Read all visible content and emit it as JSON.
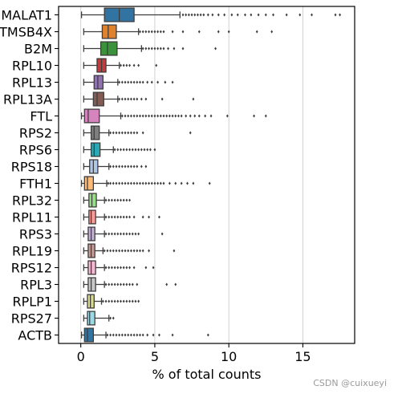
{
  "chart_data": {
    "type": "box",
    "orientation": "horizontal",
    "xlabel": "% of total counts",
    "ylabel": "",
    "xlim": [
      -1.5,
      18.5
    ],
    "xticks": [
      0,
      5,
      10,
      15
    ],
    "grid": "vertical",
    "series": [
      {
        "gene": "MALAT1",
        "color": "#3274a1",
        "min": 0.05,
        "q1": 1.6,
        "median": 2.6,
        "q3": 3.6,
        "max": 6.7,
        "outliers": [
          6.9,
          7.1,
          7.3,
          7.5,
          7.7,
          7.9,
          8.1,
          8.3,
          8.6,
          8.9,
          9.3,
          9.7,
          10.2,
          10.6,
          11.1,
          11.5,
          12.0,
          12.5,
          13.0,
          13.9,
          14.8,
          15.6,
          17.2,
          17.5
        ]
      },
      {
        "gene": "TMSB4X",
        "color": "#e1812c",
        "min": 0.2,
        "q1": 1.45,
        "median": 1.85,
        "q3": 2.4,
        "max": 3.9,
        "outliers": [
          4.0,
          4.2,
          4.4,
          4.6,
          4.8,
          5.0,
          5.2,
          5.4,
          5.6,
          6.2,
          6.9,
          8.0,
          9.3,
          10.0,
          11.9,
          12.9
        ]
      },
      {
        "gene": "B2M",
        "color": "#3a923a",
        "min": 0.2,
        "q1": 1.35,
        "median": 1.8,
        "q3": 2.45,
        "max": 4.1,
        "outliers": [
          4.2,
          4.4,
          4.6,
          4.8,
          5.0,
          5.2,
          5.4,
          5.6,
          5.9,
          6.3,
          6.9,
          9.1
        ]
      },
      {
        "gene": "RPL10",
        "color": "#c03d3e",
        "min": 0.2,
        "q1": 1.1,
        "median": 1.4,
        "q3": 1.7,
        "max": 2.6,
        "outliers": [
          2.7,
          2.9,
          3.1,
          3.3,
          3.6,
          3.9,
          5.1
        ]
      },
      {
        "gene": "RPL13",
        "color": "#9372b2",
        "min": 0.2,
        "q1": 0.9,
        "median": 1.15,
        "q3": 1.5,
        "max": 2.5,
        "outliers": [
          2.6,
          2.8,
          3.0,
          3.2,
          3.4,
          3.6,
          3.8,
          4.0,
          4.2,
          4.5,
          4.8,
          5.2,
          5.7,
          6.2
        ]
      },
      {
        "gene": "RPL13A",
        "color": "#845b53",
        "min": 0.2,
        "q1": 0.85,
        "median": 1.1,
        "q3": 1.55,
        "max": 2.5,
        "outliers": [
          2.6,
          2.8,
          3.0,
          3.2,
          3.4,
          3.6,
          3.8,
          4.1,
          4.4,
          5.5,
          7.6
        ]
      },
      {
        "gene": "FTL",
        "color": "#d684bd",
        "min": 0.05,
        "q1": 0.25,
        "median": 0.5,
        "q3": 1.25,
        "max": 2.7,
        "outliers": [
          2.8,
          3.0,
          3.2,
          3.4,
          3.6,
          3.8,
          4.0,
          4.2,
          4.4,
          4.6,
          4.8,
          5.0,
          5.2,
          5.4,
          5.6,
          5.8,
          6.0,
          6.2,
          6.4,
          6.6,
          6.8,
          7.1,
          7.4,
          7.7,
          8.0,
          8.4,
          8.8,
          9.9,
          11.7,
          12.5
        ]
      },
      {
        "gene": "RPS2",
        "color": "#7f7f7f",
        "min": 0.2,
        "q1": 0.7,
        "median": 0.9,
        "q3": 1.25,
        "max": 1.9,
        "outliers": [
          2.0,
          2.2,
          2.4,
          2.6,
          2.8,
          3.0,
          3.2,
          3.4,
          3.6,
          3.8,
          4.2,
          7.4
        ]
      },
      {
        "gene": "RPS6",
        "color": "#29a9b6",
        "min": 0.2,
        "q1": 0.7,
        "median": 0.9,
        "q3": 1.3,
        "max": 2.2,
        "outliers": [
          2.3,
          2.5,
          2.7,
          2.9,
          3.1,
          3.3,
          3.5,
          3.7,
          3.9,
          4.1,
          4.3,
          4.5,
          4.7,
          5.0
        ]
      },
      {
        "gene": "RPS18",
        "color": "#aec7e8",
        "min": 0.2,
        "q1": 0.6,
        "median": 0.85,
        "q3": 1.15,
        "max": 1.9,
        "outliers": [
          2.0,
          2.2,
          2.4,
          2.6,
          2.8,
          3.0,
          3.2,
          3.4,
          3.6,
          3.8,
          4.1,
          4.4
        ]
      },
      {
        "gene": "FTH1",
        "color": "#ffbb78",
        "min": 0.05,
        "q1": 0.25,
        "median": 0.45,
        "q3": 0.85,
        "max": 1.75,
        "outliers": [
          1.85,
          2.0,
          2.2,
          2.4,
          2.6,
          2.8,
          3.0,
          3.2,
          3.4,
          3.6,
          3.8,
          4.0,
          4.2,
          4.4,
          4.6,
          4.8,
          5.0,
          5.2,
          5.4,
          5.6,
          6.0,
          6.4,
          6.8,
          7.2,
          7.6,
          8.7
        ]
      },
      {
        "gene": "RPL32",
        "color": "#98df8a",
        "min": 0.2,
        "q1": 0.55,
        "median": 0.75,
        "q3": 1.05,
        "max": 1.6,
        "outliers": [
          1.7,
          1.9,
          2.1,
          2.3,
          2.5,
          2.7,
          2.9,
          3.1,
          3.3
        ]
      },
      {
        "gene": "RPL11",
        "color": "#ff9896",
        "min": 0.2,
        "q1": 0.55,
        "median": 0.7,
        "q3": 1.0,
        "max": 1.6,
        "outliers": [
          1.7,
          1.9,
          2.1,
          2.3,
          2.5,
          2.7,
          2.9,
          3.1,
          3.3,
          3.6,
          4.2,
          4.6,
          5.3
        ]
      },
      {
        "gene": "RPS3",
        "color": "#c5b0d5",
        "min": 0.2,
        "q1": 0.5,
        "median": 0.7,
        "q3": 0.95,
        "max": 1.6,
        "outliers": [
          1.7,
          1.9,
          2.1,
          2.3,
          2.5,
          2.7,
          2.9,
          3.1,
          3.3,
          3.5,
          3.7,
          3.9,
          5.5
        ]
      },
      {
        "gene": "RPL19",
        "color": "#c49c94",
        "min": 0.2,
        "q1": 0.5,
        "median": 0.7,
        "q3": 0.95,
        "max": 1.5,
        "outliers": [
          1.6,
          1.8,
          2.0,
          2.2,
          2.4,
          2.6,
          2.8,
          3.0,
          3.2,
          3.4,
          3.6,
          3.8,
          4.0,
          4.2,
          4.6,
          6.3
        ]
      },
      {
        "gene": "RPS12",
        "color": "#f7b6d2",
        "min": 0.2,
        "q1": 0.5,
        "median": 0.7,
        "q3": 1.0,
        "max": 1.6,
        "outliers": [
          1.7,
          1.9,
          2.1,
          2.3,
          2.5,
          2.7,
          2.9,
          3.1,
          3.3,
          3.6,
          4.4,
          4.9
        ]
      },
      {
        "gene": "RPL3",
        "color": "#c7c7c7",
        "min": 0.2,
        "q1": 0.5,
        "median": 0.7,
        "q3": 1.0,
        "max": 1.6,
        "outliers": [
          1.7,
          1.9,
          2.1,
          2.3,
          2.5,
          2.7,
          2.9,
          3.1,
          3.3,
          3.5,
          3.8,
          5.8,
          6.4
        ]
      },
      {
        "gene": "RPLP1",
        "color": "#dbdb8d",
        "min": 0.2,
        "q1": 0.45,
        "median": 0.65,
        "q3": 0.9,
        "max": 1.4,
        "outliers": [
          1.5,
          1.7,
          1.9,
          2.1,
          2.3,
          2.5,
          2.7,
          2.9,
          3.1,
          3.3,
          3.5,
          3.7,
          3.9
        ]
      },
      {
        "gene": "RPS27",
        "color": "#9edae5",
        "min": 0.2,
        "q1": 0.45,
        "median": 0.6,
        "q3": 0.95,
        "max": 1.9,
        "outliers": [
          2.0,
          2.2
        ]
      },
      {
        "gene": "ACTB",
        "color": "#3274a1",
        "min": 0.05,
        "q1": 0.25,
        "median": 0.45,
        "q3": 0.85,
        "max": 1.7,
        "outliers": [
          1.8,
          2.0,
          2.2,
          2.4,
          2.6,
          2.8,
          3.0,
          3.2,
          3.4,
          3.6,
          3.8,
          4.0,
          4.2,
          4.5,
          4.9,
          5.3,
          6.2,
          8.6
        ]
      }
    ]
  },
  "watermark": "CSDN @cuixueyi"
}
